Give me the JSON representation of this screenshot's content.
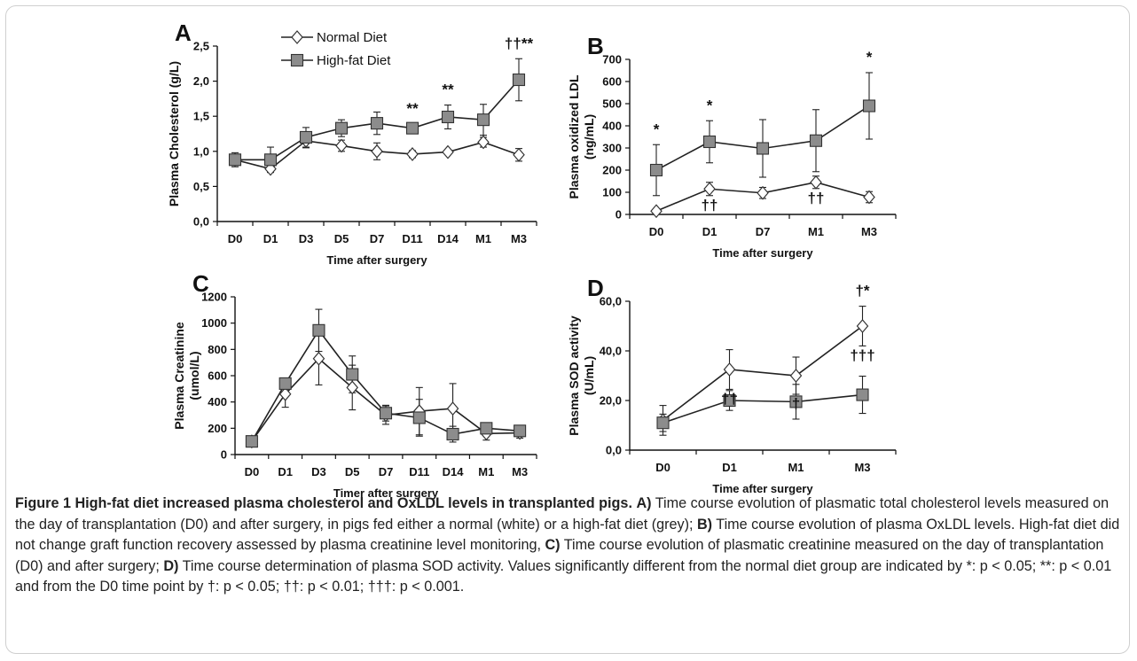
{
  "legend": {
    "normal": "Normal Diet",
    "highfat": "High-fat Diet"
  },
  "charts": [
    {
      "letter": "A",
      "type": "line",
      "xlabel": "Time after surgery",
      "ylabel": "Plasma Cholesterol (g/L)",
      "ylim": [
        0,
        2.5
      ],
      "yticks": [
        0,
        0.5,
        1,
        1.5,
        2,
        2.5
      ],
      "ytick_labels": [
        "0,0",
        "0,5",
        "1,0",
        "1,5",
        "2,0",
        "2,5"
      ],
      "categories": [
        "D0",
        "D1",
        "D3",
        "D5",
        "D7",
        "D11",
        "D14",
        "M1",
        "M3"
      ],
      "series": [
        {
          "name": "Normal Diet",
          "marker": "diamond",
          "values": [
            0.88,
            0.75,
            1.15,
            1.08,
            1.0,
            0.96,
            0.99,
            1.13,
            0.95
          ],
          "err": [
            0.07,
            0.05,
            0.1,
            0.08,
            0.12,
            0.05,
            0.03,
            0.07,
            0.09
          ]
        },
        {
          "name": "High-fat Diet",
          "marker": "square",
          "values": [
            0.88,
            0.88,
            1.2,
            1.33,
            1.4,
            1.33,
            1.49,
            1.45,
            2.02
          ],
          "err": [
            0.1,
            0.18,
            0.14,
            0.12,
            0.16,
            0.06,
            0.17,
            0.22,
            0.3
          ]
        }
      ],
      "annotations": [
        {
          "text": "**",
          "x": "D11"
        },
        {
          "text": "**",
          "x": "D14"
        },
        {
          "text": "††**",
          "x": "M3"
        }
      ]
    },
    {
      "letter": "B",
      "type": "line",
      "xlabel": "Time after surgery",
      "ylabel": "Plasma oxidized LDL (ng/mL)",
      "ylim": [
        0,
        700
      ],
      "yticks": [
        0,
        100,
        200,
        300,
        400,
        500,
        600,
        700
      ],
      "ytick_labels": [
        "0",
        "100",
        "200",
        "300",
        "400",
        "500",
        "600",
        "700"
      ],
      "categories": [
        "D0",
        "D1",
        "D7",
        "M1",
        "M3"
      ],
      "series": [
        {
          "name": "Normal Diet",
          "marker": "diamond",
          "values": [
            15,
            115,
            97,
            145,
            78
          ],
          "err": [
            8,
            30,
            25,
            28,
            25
          ]
        },
        {
          "name": "High-fat Diet",
          "marker": "square",
          "values": [
            200,
            328,
            298,
            333,
            490
          ],
          "err": [
            115,
            95,
            130,
            140,
            150
          ]
        }
      ],
      "annotations": [
        {
          "text": "*",
          "x": "D0",
          "pos": "above"
        },
        {
          "text": "*",
          "x": "D1",
          "pos": "above"
        },
        {
          "text": "*",
          "x": "M3",
          "pos": "above"
        },
        {
          "text": "††",
          "x": "D1",
          "pos": "below"
        },
        {
          "text": "††",
          "x": "M1",
          "pos": "below"
        }
      ]
    },
    {
      "letter": "C",
      "type": "line",
      "xlabel": "Timer after surgery",
      "ylabel": "Plasma Creatinine (umol/L)",
      "ylim": [
        0,
        1200
      ],
      "yticks": [
        0,
        200,
        400,
        600,
        800,
        1000,
        1200
      ],
      "ytick_labels": [
        "0",
        "200",
        "400",
        "600",
        "800",
        "1000",
        "1200"
      ],
      "categories": [
        "D0",
        "D1",
        "D3",
        "D5",
        "D7",
        "D11",
        "D14",
        "M1",
        "M3"
      ],
      "series": [
        {
          "name": "Normal Diet",
          "marker": "diamond",
          "values": [
            100,
            460,
            730,
            510,
            300,
            330,
            350,
            160,
            165
          ],
          "err": [
            15,
            100,
            200,
            170,
            70,
            180,
            190,
            50,
            40
          ]
        },
        {
          "name": "High-fat Diet",
          "marker": "square",
          "values": [
            100,
            540,
            945,
            610,
            315,
            280,
            155,
            200,
            180
          ],
          "err": [
            15,
            40,
            160,
            140,
            60,
            140,
            60,
            40,
            30
          ]
        }
      ],
      "annotations": []
    },
    {
      "letter": "D",
      "type": "line",
      "xlabel": "Time after surgery",
      "ylabel": "Plasma SOD activity (U/mL)",
      "ylim": [
        0,
        60
      ],
      "yticks": [
        0,
        20,
        40,
        60
      ],
      "ytick_labels": [
        "0,0",
        "20,0",
        "40,0",
        "60,0"
      ],
      "categories": [
        "D0",
        "D1",
        "M1",
        "M3"
      ],
      "series": [
        {
          "name": "Normal Diet",
          "marker": "diamond",
          "values": [
            12,
            32.5,
            30,
            50
          ],
          "err": [
            6,
            8,
            7.5,
            8
          ]
        },
        {
          "name": "High-fat Diet",
          "marker": "square",
          "values": [
            11,
            20,
            19.5,
            22.3
          ],
          "err": [
            3.5,
            4,
            7,
            7.5
          ]
        }
      ],
      "annotations": [
        {
          "text": "†*",
          "x": "M3",
          "pos": "above"
        },
        {
          "text": "††",
          "x": "D1",
          "pos": "below"
        },
        {
          "text": "†",
          "x": "M1",
          "pos": "below"
        },
        {
          "text": "†††",
          "x": "M3",
          "pos": "below"
        }
      ]
    }
  ],
  "caption": {
    "title": "Figure 1 High-fat diet increased plasma cholesterol and OxLDL levels in transplanted pigs.",
    "a_label": "A)",
    "a_text": " Time course evolution of plasmatic total cholesterol levels measured on the day of transplantation (D0) and after surgery, in pigs fed either a normal (white) or a high-fat diet (grey); ",
    "b_label": "B)",
    "b_text": " Time course evolution of plasma OxLDL levels. High-fat diet did not change graft function recovery assessed by plasma creatinine level monitoring, ",
    "c_label": "C)",
    "c_text": " Time course evolution of plasmatic creatinine measured on the day of transplantation (D0) and after surgery; ",
    "d_label": "D)",
    "d_text": " Time course determination of plasma SOD activity. Values significantly different from the normal diet group are indicated by *: p < 0.05; **: p < 0.01 and from the D0 time point by †: p < 0.05; ††: p < 0.01; †††: p < 0.001."
  },
  "colors": {
    "line": "#222222",
    "square_fill": "#8c8c8c",
    "diamond_fill": "#ffffff"
  }
}
